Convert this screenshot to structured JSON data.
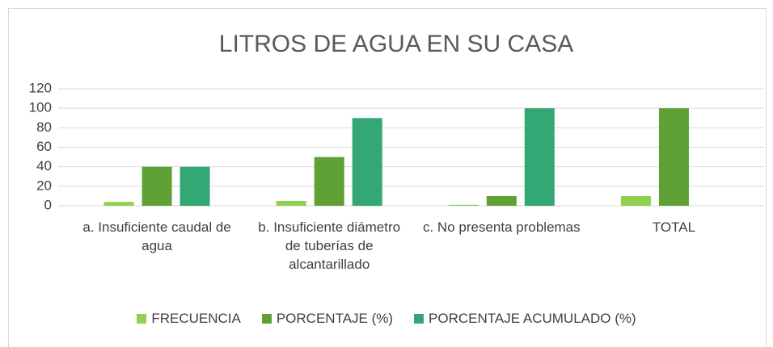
{
  "chart_data": {
    "type": "bar",
    "title": "LITROS DE AGUA  EN SU CASA",
    "categories": [
      "a. Insuficiente caudal de agua",
      "b. Insuficiente diámetro de tuberías de alcantarillado",
      "c. No presenta problemas",
      "TOTAL"
    ],
    "series": [
      {
        "name": "FRECUENCIA",
        "color": "#92d050",
        "values": [
          4,
          5,
          1,
          10
        ]
      },
      {
        "name": "PORCENTAJE (%)",
        "color": "#5fa135",
        "values": [
          40,
          50,
          10,
          100
        ]
      },
      {
        "name": "PORCENTAJE ACUMULADO (%)",
        "color": "#34a874",
        "values": [
          40,
          90,
          100,
          null
        ]
      }
    ],
    "ylim": [
      0,
      120
    ],
    "yticks": [
      0,
      20,
      40,
      60,
      80,
      100,
      120
    ],
    "grid": true,
    "legend": "bottom"
  }
}
